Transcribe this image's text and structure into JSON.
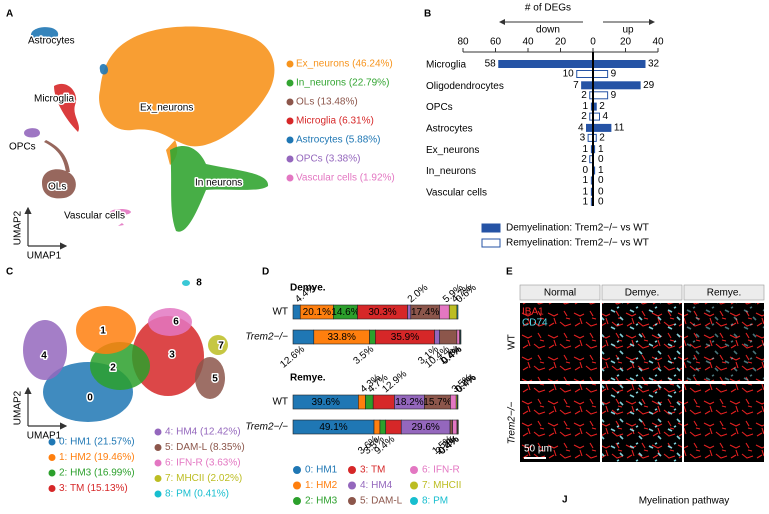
{
  "panel_labels": [
    "A",
    "B",
    "C",
    "D",
    "E",
    "J"
  ],
  "panel_a": {
    "cell_labels": [
      "Ex_neurons",
      "In neurons",
      "OLs",
      "Microglia",
      "Astrocytes",
      "OPCs",
      "Vascular cells"
    ],
    "x_label": "UMAP1",
    "y_label": "UMAP2",
    "legend": [
      {
        "name": "Ex_neurons (46.24%)",
        "color": "#f7941d"
      },
      {
        "name": "In_neurons (22.79%)",
        "color": "#33a532"
      },
      {
        "name": "OLs (13.48%)",
        "color": "#8c564b"
      },
      {
        "name": "Microglia (6.31%)",
        "color": "#d62728"
      },
      {
        "name": "Astrocytes (5.88%)",
        "color": "#1f77b4"
      },
      {
        "name": "OPCs (3.38%)",
        "color": "#9467bd"
      },
      {
        "name": "Vascular cells (1.92%)",
        "color": "#e377c2"
      }
    ]
  },
  "chart_data": [
    {
      "type": "diverging-bar",
      "title": "# of DEGs",
      "direction_labels": [
        "down",
        "up"
      ],
      "categories": [
        "Microglia",
        "Oligodendrocytes",
        "OPCs",
        "Astrocytes",
        "Ex_neurons",
        "In_neurons",
        "Vascular cells"
      ],
      "xlim": [
        -80,
        40
      ],
      "xticks": [
        {
          "value": -80,
          "label": "80"
        },
        {
          "value": -60,
          "label": "60"
        },
        {
          "value": -40,
          "label": "40"
        },
        {
          "value": -20,
          "label": "20"
        },
        0,
        20,
        40
      ],
      "series": [
        {
          "name": "Demyelination: Trem2−/− vs WT",
          "color": "#2553a5",
          "filled": true,
          "down": [
            -58,
            -7,
            -1,
            -4,
            -1,
            0,
            -1
          ],
          "down_labels": [
            "58",
            "7",
            "1",
            "4",
            "1",
            "0",
            "1"
          ],
          "up": [
            32,
            29,
            2,
            11,
            1,
            1,
            0
          ]
        },
        {
          "name": "Remyelination: Trem2−/− vs WT",
          "color": "#2553a5",
          "filled": false,
          "down": [
            -10,
            -2,
            -2,
            -3,
            -2,
            -1,
            -1
          ],
          "down_labels": [
            "10",
            "2",
            "2",
            "3",
            "2",
            "1",
            "1"
          ],
          "up": [
            9,
            9,
            4,
            2,
            0,
            0,
            0
          ]
        }
      ]
    },
    {
      "type": "stacked-bar",
      "orientation": "horizontal",
      "xlim": [
        0,
        100
      ],
      "groups": [
        {
          "title": "Demye.",
          "categories": [
            "WT",
            "Trem2−/−"
          ]
        },
        {
          "title": "Remye.",
          "categories": [
            "WT",
            "Trem2−/−"
          ]
        }
      ],
      "series": [
        {
          "name": "0: HM1",
          "color": "#1f77b4",
          "values": [
            4.4,
            12.6,
            39.6,
            49.1
          ],
          "value_labels": [
            "4.4%",
            "12.6%",
            "39.6%",
            "49.1%"
          ]
        },
        {
          "name": "1: HM2",
          "color": "#ff7f0e",
          "values": [
            20.1,
            33.8,
            4.3,
            3.6
          ],
          "value_labels": [
            "20.1%",
            "33.8%",
            "4.3%",
            "3.6%"
          ]
        },
        {
          "name": "2: HM3",
          "color": "#2ca02c",
          "values": [
            14.6,
            3.5,
            4.7,
            3.5
          ],
          "value_labels": [
            "14.6%",
            "3.5%",
            "4.7%",
            "3.5%"
          ]
        },
        {
          "name": "3: TM",
          "color": "#d62728",
          "values": [
            30.3,
            35.9,
            12.9,
            9.4
          ],
          "value_labels": [
            "30.3%",
            "35.9%",
            "12.9%",
            "9.4%"
          ]
        },
        {
          "name": "4: HM4",
          "color": "#9467bd",
          "values": [
            2.0,
            3.1,
            18.2,
            29.6
          ],
          "value_labels": [
            "2.0%",
            "3.1%",
            "18.2%",
            "29.6%"
          ]
        },
        {
          "name": "5: DAM-L",
          "color": "#8c564b",
          "values": [
            17.4,
            10.4,
            15.7,
            1.5
          ],
          "value_labels": [
            "17.4%",
            "10.4%",
            "15.7%",
            "1.5%"
          ]
        },
        {
          "name": "6: IFN-R",
          "color": "#e377c2",
          "values": [
            5.9,
            1.7,
            3.5,
            2.7
          ],
          "value_labels": [
            "5.9%",
            "1.7%",
            "3.5%",
            "2.7%"
          ]
        },
        {
          "name": "7: MHCII",
          "color": "#bcbd22",
          "values": [
            4.7,
            0.4,
            0.7,
            0.4
          ],
          "value_labels": [
            "4.7%",
            "0.4%",
            "0.7%",
            "0.4%"
          ]
        },
        {
          "name": "8: PM",
          "color": "#17becf",
          "values": [
            0.6,
            0.4,
            0.4,
            0.4
          ],
          "value_labels": [
            "0.6%",
            "0.4%",
            "0.4%",
            "0.4%"
          ]
        }
      ]
    }
  ],
  "panel_c": {
    "cluster_labels": [
      "0",
      "1",
      "2",
      "3",
      "4",
      "5",
      "6",
      "7",
      "8"
    ],
    "x_label": "UMAP1",
    "y_label": "UMAP2",
    "legend": [
      {
        "name": "0: HM1 (21.57%)",
        "color": "#1f77b4"
      },
      {
        "name": "1: HM2 (19.46%)",
        "color": "#ff7f0e"
      },
      {
        "name": "2: HM3 (16.99%)",
        "color": "#2ca02c"
      },
      {
        "name": "3: TM (15.13%)",
        "color": "#d62728"
      },
      {
        "name": "4: HM4 (12.42%)",
        "color": "#9467bd"
      },
      {
        "name": "5: DAM-L (8.35%)",
        "color": "#8c564b"
      },
      {
        "name": "6: IFN-R (3.63%)",
        "color": "#e377c2"
      },
      {
        "name": "7: MHCII (2.02%)",
        "color": "#bcbd22"
      },
      {
        "name": "8: PM (0.41%)",
        "color": "#17becf"
      }
    ]
  },
  "panel_e": {
    "columns": [
      "Normal",
      "Demye.",
      "Remye."
    ],
    "rows": [
      "WT",
      "Trem2−/−"
    ],
    "stains": [
      {
        "name": "IBA1",
        "color": "#ff2a2a"
      },
      {
        "name": "CD74",
        "color": "#5ad8e8"
      }
    ],
    "scale_bar": "50 µm"
  },
  "panel_j": {
    "title": "Myelination pathway"
  }
}
